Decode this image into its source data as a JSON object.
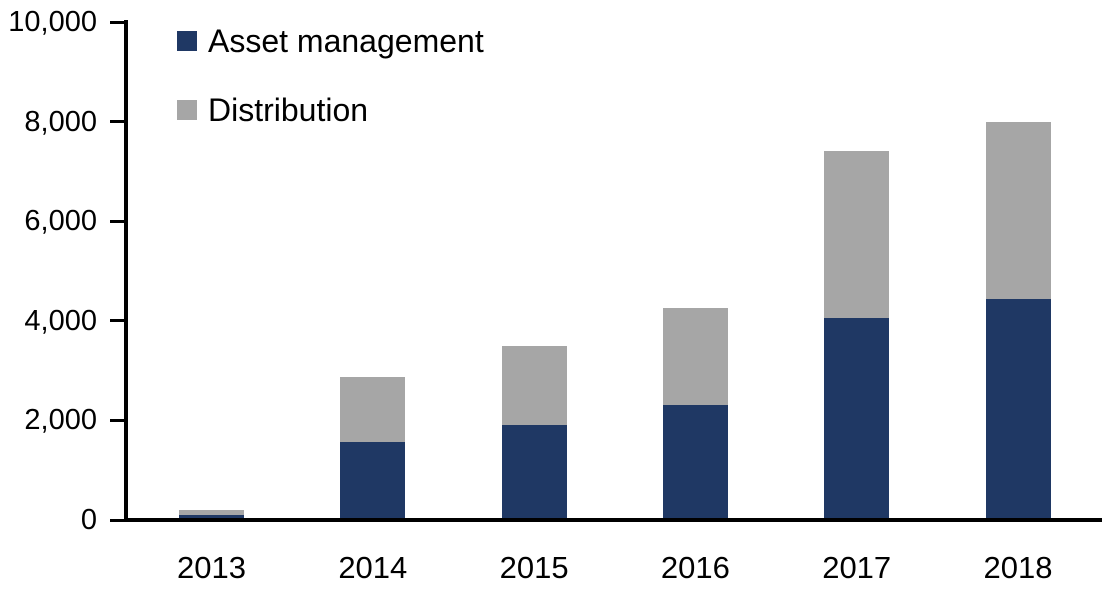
{
  "chart_data": {
    "type": "bar",
    "stacked": true,
    "title": "",
    "xlabel": "",
    "ylabel": "",
    "categories": [
      "2013",
      "2014",
      "2015",
      "2016",
      "2017",
      "2018"
    ],
    "series": [
      {
        "name": "Asset management",
        "color": "#1F3864",
        "values": [
          100,
          1560,
          1900,
          2310,
          4050,
          4440
        ]
      },
      {
        "name": "Distribution",
        "color": "#A6A6A6",
        "values": [
          100,
          1320,
          1600,
          1940,
          3350,
          3560
        ]
      }
    ],
    "ylim": [
      0,
      10000
    ],
    "ytick_interval": 2000,
    "ytick_labels": [
      "0",
      "2,000",
      "4,000",
      "6,000",
      "8,000",
      "10,000"
    ],
    "grid": false,
    "legend_position": "inside-top-left",
    "axis_color": "#000000",
    "text_color": "#000000",
    "background_color": "#FFFFFF"
  }
}
